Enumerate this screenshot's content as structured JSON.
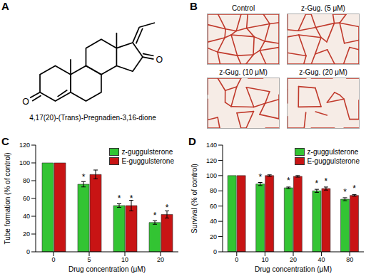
{
  "panel_labels": [
    "A",
    "B",
    "C",
    "D"
  ],
  "panel_a": {
    "caption": "4,17(20)-(Trans)-Pregnadien-3,16-dione",
    "atom_labels": [
      "O",
      "O"
    ]
  },
  "panel_b": {
    "images": [
      "Control",
      "z-Gug. (5 μM)",
      "z-Gug. (10 μM)",
      "z-Gug. (20 μM)"
    ]
  },
  "chart_data": [
    {
      "type": "bar",
      "x_label": "Drug concentration (μM)",
      "y_label": "Tube formation (% of control)",
      "categories": [
        0,
        5,
        10,
        20
      ],
      "ylim": [
        0,
        120
      ],
      "yticks": [
        0,
        20,
        40,
        60,
        80,
        100,
        120
      ],
      "legend": "top-right",
      "significance_mark": "*",
      "series": [
        {
          "name": "z-guggulsterone",
          "color": "#33c433",
          "values": [
            100,
            76,
            52,
            33
          ],
          "errors": [
            0,
            3,
            2,
            2
          ],
          "significant": [
            false,
            true,
            true,
            true
          ]
        },
        {
          "name": "E-guggulsterone",
          "color": "#c81414",
          "values": [
            100,
            87,
            52,
            42
          ],
          "errors": [
            0,
            5,
            6,
            4
          ],
          "significant": [
            false,
            false,
            true,
            true
          ]
        }
      ]
    },
    {
      "type": "bar",
      "x_label": "Drug concentration (μM)",
      "y_label": "Survival (% of control)",
      "categories": [
        0,
        10,
        20,
        40,
        80
      ],
      "ylim": [
        0,
        140
      ],
      "yticks": [
        0,
        20,
        40,
        60,
        80,
        100,
        120,
        140
      ],
      "legend": "top-right",
      "significance_mark": "*",
      "series": [
        {
          "name": "z-guggulsterone",
          "color": "#33c433",
          "values": [
            100,
            89,
            84,
            80,
            69
          ],
          "errors": [
            0,
            2,
            1,
            2,
            2
          ],
          "significant": [
            false,
            true,
            true,
            true,
            true
          ]
        },
        {
          "name": "E-guggulsterone",
          "color": "#c81414",
          "values": [
            100,
            100,
            99,
            83,
            74
          ],
          "errors": [
            0,
            1,
            1,
            2,
            1
          ],
          "significant": [
            false,
            false,
            false,
            true,
            true
          ]
        }
      ]
    }
  ]
}
